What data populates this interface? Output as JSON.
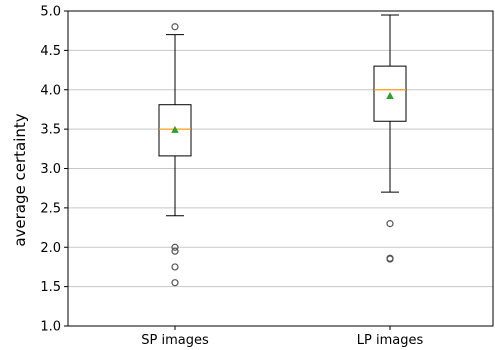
{
  "chart_data": {
    "type": "box",
    "title": "",
    "xlabel": "",
    "ylabel": "average certainty",
    "ylim": [
      1.0,
      5.0
    ],
    "yticks": [
      "1.0",
      "1.5",
      "2.0",
      "2.5",
      "3.0",
      "3.5",
      "4.0",
      "4.5",
      "5.0"
    ],
    "grid": "horizontal",
    "categories": [
      "SP images",
      "LP images"
    ],
    "boxes": [
      {
        "category": "SP images",
        "whisker_low": 2.4,
        "q1": 3.16,
        "median": 3.5,
        "mean": 3.49,
        "q3": 3.81,
        "whisker_high": 4.7,
        "outliers": [
          4.8,
          2.0,
          1.95,
          1.75,
          1.55
        ]
      },
      {
        "category": "LP images",
        "whisker_low": 2.7,
        "q1": 3.6,
        "median": 4.0,
        "mean": 3.92,
        "q3": 4.3,
        "whisker_high": 4.95,
        "outliers": [
          2.3,
          1.86,
          1.85
        ]
      }
    ],
    "colors": {
      "box": "#000000",
      "median": "#ff9f1a",
      "mean": "#2ca02c",
      "grid": "#c8c8c8",
      "outlier": "#555555"
    }
  }
}
